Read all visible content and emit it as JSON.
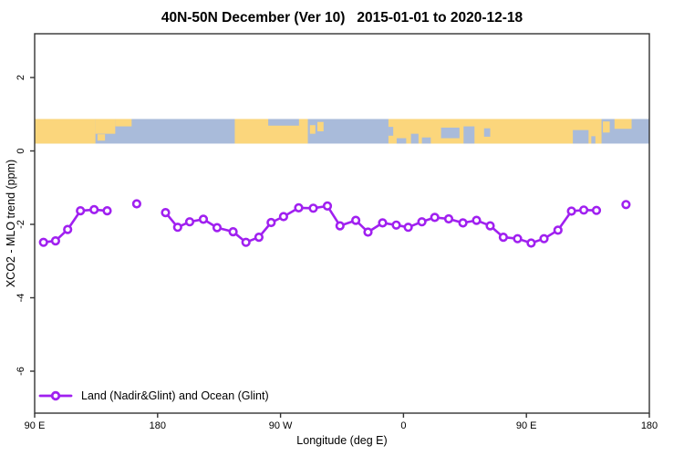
{
  "chart_data": {
    "type": "line",
    "title": "40N-50N December (Ver 10)   2015-01-01 to 2020-12-18",
    "xlabel": "Longitude (deg E)",
    "ylabel": "XCO2 - MLO trend (ppm)",
    "xlim": [
      90,
      540
    ],
    "ylim": [
      -7.1,
      3.2
    ],
    "grid": "off",
    "x_ticks": [
      {
        "pos": 90,
        "label": "90 E"
      },
      {
        "pos": 180,
        "label": "180"
      },
      {
        "pos": 270,
        "label": "90 W"
      },
      {
        "pos": 360,
        "label": "0"
      },
      {
        "pos": 450,
        "label": "90 E"
      },
      {
        "pos": 540,
        "label": "180"
      }
    ],
    "y_ticks": [
      {
        "pos": 2,
        "label": "2"
      },
      {
        "pos": 0,
        "label": "0"
      },
      {
        "pos": -2,
        "label": "-2"
      },
      {
        "pos": -4,
        "label": "-4"
      },
      {
        "pos": -6,
        "label": "-6"
      }
    ],
    "legend": {
      "label": "Land (Nadir&Glint) and Ocean (Glint)",
      "position": "bottom-left"
    },
    "axis_color": "#333333",
    "background": "#FFFFFF",
    "series": [
      {
        "name": "Land (Nadir&Glint) and Ocean (Glint)",
        "color": "#A020F0",
        "marker": "open-circle",
        "segments": [
          [
            [
              96.5,
              -2.49
            ],
            [
              105.3,
              -2.45
            ],
            [
              114.2,
              -2.14
            ],
            [
              123.5,
              -1.63
            ],
            [
              133.5,
              -1.6
            ],
            [
              143.1,
              -1.63
            ]
          ],
          [
            [
              164.7,
              -1.44
            ]
          ],
          [
            [
              185.8,
              -1.68
            ],
            [
              194.7,
              -2.08
            ],
            [
              203.5,
              -1.93
            ],
            [
              213.5,
              -1.86
            ],
            [
              223.5,
              -2.09
            ],
            [
              235.3,
              -2.2
            ],
            [
              244.7,
              -2.49
            ],
            [
              254.2,
              -2.35
            ],
            [
              263.1,
              -1.95
            ],
            [
              272.2,
              -1.79
            ],
            [
              283.3,
              -1.55
            ],
            [
              294.0,
              -1.56
            ],
            [
              304.3,
              -1.5
            ],
            [
              313.5,
              -2.04
            ],
            [
              325.1,
              -1.89
            ],
            [
              334.0,
              -2.21
            ],
            [
              344.7,
              -1.96
            ],
            [
              354.7,
              -2.02
            ],
            [
              363.5,
              -2.08
            ],
            [
              373.5,
              -1.93
            ],
            [
              382.9,
              -1.81
            ],
            [
              393.1,
              -1.85
            ],
            [
              403.5,
              -1.96
            ],
            [
              413.5,
              -1.89
            ],
            [
              423.5,
              -2.04
            ],
            [
              433.1,
              -2.35
            ],
            [
              443.5,
              -2.39
            ],
            [
              453.5,
              -2.51
            ],
            [
              462.9,
              -2.39
            ],
            [
              473.1,
              -2.16
            ],
            [
              483.0,
              -1.64
            ],
            [
              492.0,
              -1.61
            ],
            [
              501.3,
              -1.62
            ]
          ],
          [
            [
              522.9,
              -1.46
            ]
          ]
        ]
      }
    ],
    "map_band": {
      "description": "40N-50N latitude world land/ocean strip",
      "val_top": 0.87,
      "val_bottom": 0.2,
      "ocean_color": "#A9BBDA",
      "land_color": "#FBD67C",
      "land": [
        [
          90,
          134.5,
          0,
          1
        ],
        [
          134.5,
          149,
          0,
          0.6
        ],
        [
          149,
          161,
          0,
          0.3
        ],
        [
          136,
          141.5,
          0.62,
          0.88
        ],
        [
          236.5,
          290,
          0,
          1
        ],
        [
          291.5,
          295.5,
          0.25,
          0.6
        ],
        [
          297,
          301.5,
          0.12,
          0.5
        ],
        [
          349,
          505,
          0,
          1
        ],
        [
          506,
          511,
          0.1,
          0.55
        ],
        [
          514.5,
          527,
          0,
          0.4
        ]
      ],
      "ocean": [
        [
          261,
          283.5,
          0,
          0.27
        ],
        [
          349,
          352.5,
          0.32,
          0.68
        ],
        [
          355,
          362,
          0.78,
          1
        ],
        [
          365.5,
          371,
          0.6,
          1
        ],
        [
          373.5,
          380,
          0.75,
          1
        ],
        [
          387.5,
          401,
          0.35,
          0.78
        ],
        [
          404,
          412,
          0.3,
          1
        ],
        [
          419,
          423.5,
          0.38,
          0.72
        ],
        [
          484,
          495.5,
          0.45,
          1
        ],
        [
          497.5,
          500.5,
          0.7,
          1
        ]
      ]
    }
  }
}
